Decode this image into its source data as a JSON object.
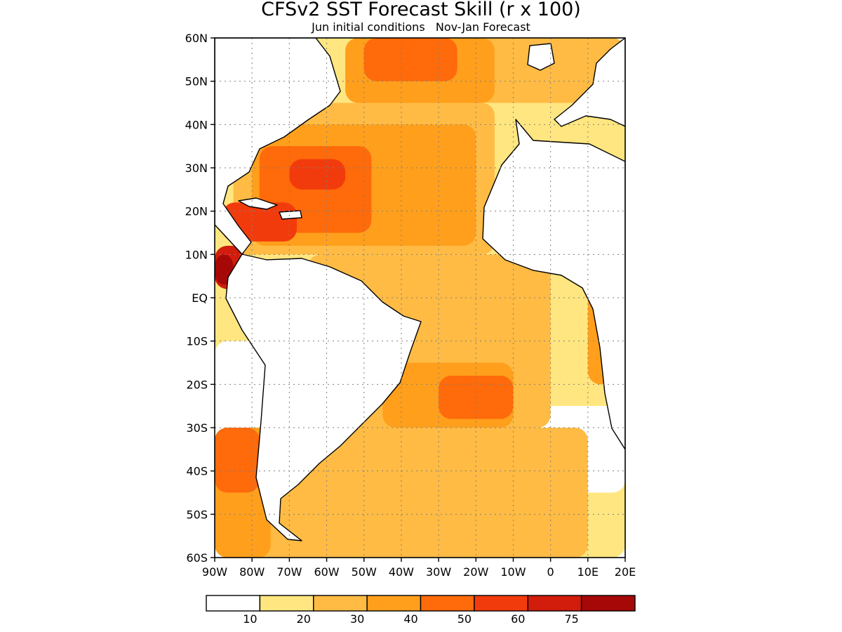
{
  "title": "CFSv2 SST Forecast Skill (r x 100)",
  "subtitle": "Jun initial conditions   Nov-Jan Forecast",
  "map": {
    "lon_range": [
      -90,
      20
    ],
    "lat_range": [
      -60,
      60
    ],
    "lat_ticks": [
      {
        "value": 60,
        "label": "60N"
      },
      {
        "value": 50,
        "label": "50N"
      },
      {
        "value": 40,
        "label": "40N"
      },
      {
        "value": 30,
        "label": "30N"
      },
      {
        "value": 20,
        "label": "20N"
      },
      {
        "value": 10,
        "label": "10N"
      },
      {
        "value": 0,
        "label": "EQ"
      },
      {
        "value": -10,
        "label": "10S"
      },
      {
        "value": -20,
        "label": "20S"
      },
      {
        "value": -30,
        "label": "30S"
      },
      {
        "value": -40,
        "label": "40S"
      },
      {
        "value": -50,
        "label": "50S"
      },
      {
        "value": -60,
        "label": "60S"
      }
    ],
    "lon_ticks": [
      {
        "value": -90,
        "label": "90W"
      },
      {
        "value": -80,
        "label": "80W"
      },
      {
        "value": -70,
        "label": "70W"
      },
      {
        "value": -60,
        "label": "60W"
      },
      {
        "value": -50,
        "label": "50W"
      },
      {
        "value": -40,
        "label": "40W"
      },
      {
        "value": -30,
        "label": "30W"
      },
      {
        "value": -20,
        "label": "20W"
      },
      {
        "value": -10,
        "label": "10W"
      },
      {
        "value": 0,
        "label": "0"
      },
      {
        "value": 10,
        "label": "10E"
      },
      {
        "value": 20,
        "label": "20E"
      }
    ],
    "grid": "dotted"
  },
  "colorbar": {
    "colors": [
      "#ffffff",
      "#ffe680",
      "#ffbb44",
      "#ff9f1c",
      "#ff6a0a",
      "#f23b0c",
      "#d21c0c",
      "#a60808"
    ],
    "labels": [
      "10",
      "20",
      "30",
      "40",
      "50",
      "60",
      "75"
    ]
  },
  "skill_regions": [
    {
      "level": 1,
      "lon": [
        -90,
        20
      ],
      "lat": [
        -60,
        60
      ]
    },
    {
      "level": 0,
      "lon": [
        -70,
        20
      ],
      "lat": [
        -45,
        -25
      ]
    },
    {
      "level": 0,
      "lon": [
        -30,
        -15
      ],
      "lat": [
        -5,
        5
      ]
    },
    {
      "level": 0,
      "lon": [
        -90,
        -75
      ],
      "lat": [
        -35,
        -10
      ]
    },
    {
      "level": 2,
      "lon": [
        -65,
        0
      ],
      "lat": [
        -30,
        10
      ]
    },
    {
      "level": 2,
      "lon": [
        -85,
        -15
      ],
      "lat": [
        10,
        45
      ]
    },
    {
      "level": 2,
      "lon": [
        -80,
        10
      ],
      "lat": [
        -60,
        -30
      ]
    },
    {
      "level": 2,
      "lon": [
        -40,
        20
      ],
      "lat": [
        45,
        60
      ]
    },
    {
      "level": 3,
      "lon": [
        -80,
        -20
      ],
      "lat": [
        12,
        40
      ]
    },
    {
      "level": 3,
      "lon": [
        -45,
        -10
      ],
      "lat": [
        -30,
        -15
      ]
    },
    {
      "level": 3,
      "lon": [
        -90,
        -75
      ],
      "lat": [
        -60,
        -30
      ]
    },
    {
      "level": 3,
      "lon": [
        -55,
        -15
      ],
      "lat": [
        45,
        60
      ]
    },
    {
      "level": 3,
      "lon": [
        10,
        20
      ],
      "lat": [
        -20,
        5
      ]
    },
    {
      "level": 4,
      "lon": [
        -78,
        -48
      ],
      "lat": [
        15,
        35
      ]
    },
    {
      "level": 4,
      "lon": [
        -30,
        -10
      ],
      "lat": [
        -28,
        -18
      ]
    },
    {
      "level": 4,
      "lon": [
        -50,
        -25
      ],
      "lat": [
        50,
        60
      ]
    },
    {
      "level": 4,
      "lon": [
        -90,
        -78
      ],
      "lat": [
        -45,
        -30
      ]
    },
    {
      "level": 5,
      "lon": [
        -88,
        -68
      ],
      "lat": [
        13,
        22
      ]
    },
    {
      "level": 5,
      "lon": [
        -70,
        -55
      ],
      "lat": [
        25,
        32
      ]
    },
    {
      "level": 6,
      "lon": [
        -90,
        -82
      ],
      "lat": [
        2,
        12
      ]
    },
    {
      "level": 7,
      "lon": [
        -90,
        -85
      ],
      "lat": [
        3,
        10
      ]
    }
  ]
}
